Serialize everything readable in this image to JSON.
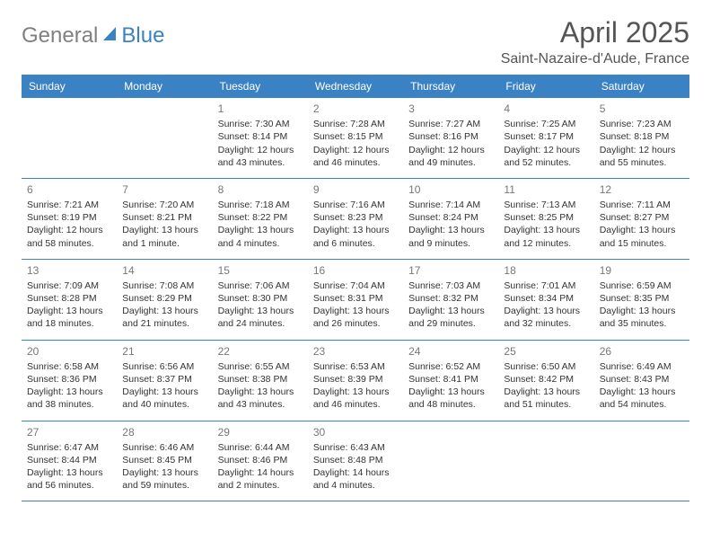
{
  "logo": {
    "text1": "General",
    "text2": "Blue"
  },
  "title": "April 2025",
  "location": "Saint-Nazaire-d'Aude, France",
  "colors": {
    "header_bg": "#3b82c4",
    "header_text": "#ffffff",
    "logo_gray": "#808080",
    "logo_blue": "#3b82c4",
    "title_color": "#555555",
    "text_color": "#333333",
    "daynum_color": "#777777",
    "border_color": "#3b82c4",
    "background": "#ffffff"
  },
  "weekdays": [
    "Sunday",
    "Monday",
    "Tuesday",
    "Wednesday",
    "Thursday",
    "Friday",
    "Saturday"
  ],
  "weeks": [
    [
      null,
      null,
      {
        "n": "1",
        "sr": "Sunrise: 7:30 AM",
        "ss": "Sunset: 8:14 PM",
        "d1": "Daylight: 12 hours",
        "d2": "and 43 minutes."
      },
      {
        "n": "2",
        "sr": "Sunrise: 7:28 AM",
        "ss": "Sunset: 8:15 PM",
        "d1": "Daylight: 12 hours",
        "d2": "and 46 minutes."
      },
      {
        "n": "3",
        "sr": "Sunrise: 7:27 AM",
        "ss": "Sunset: 8:16 PM",
        "d1": "Daylight: 12 hours",
        "d2": "and 49 minutes."
      },
      {
        "n": "4",
        "sr": "Sunrise: 7:25 AM",
        "ss": "Sunset: 8:17 PM",
        "d1": "Daylight: 12 hours",
        "d2": "and 52 minutes."
      },
      {
        "n": "5",
        "sr": "Sunrise: 7:23 AM",
        "ss": "Sunset: 8:18 PM",
        "d1": "Daylight: 12 hours",
        "d2": "and 55 minutes."
      }
    ],
    [
      {
        "n": "6",
        "sr": "Sunrise: 7:21 AM",
        "ss": "Sunset: 8:19 PM",
        "d1": "Daylight: 12 hours",
        "d2": "and 58 minutes."
      },
      {
        "n": "7",
        "sr": "Sunrise: 7:20 AM",
        "ss": "Sunset: 8:21 PM",
        "d1": "Daylight: 13 hours",
        "d2": "and 1 minute."
      },
      {
        "n": "8",
        "sr": "Sunrise: 7:18 AM",
        "ss": "Sunset: 8:22 PM",
        "d1": "Daylight: 13 hours",
        "d2": "and 4 minutes."
      },
      {
        "n": "9",
        "sr": "Sunrise: 7:16 AM",
        "ss": "Sunset: 8:23 PM",
        "d1": "Daylight: 13 hours",
        "d2": "and 6 minutes."
      },
      {
        "n": "10",
        "sr": "Sunrise: 7:14 AM",
        "ss": "Sunset: 8:24 PM",
        "d1": "Daylight: 13 hours",
        "d2": "and 9 minutes."
      },
      {
        "n": "11",
        "sr": "Sunrise: 7:13 AM",
        "ss": "Sunset: 8:25 PM",
        "d1": "Daylight: 13 hours",
        "d2": "and 12 minutes."
      },
      {
        "n": "12",
        "sr": "Sunrise: 7:11 AM",
        "ss": "Sunset: 8:27 PM",
        "d1": "Daylight: 13 hours",
        "d2": "and 15 minutes."
      }
    ],
    [
      {
        "n": "13",
        "sr": "Sunrise: 7:09 AM",
        "ss": "Sunset: 8:28 PM",
        "d1": "Daylight: 13 hours",
        "d2": "and 18 minutes."
      },
      {
        "n": "14",
        "sr": "Sunrise: 7:08 AM",
        "ss": "Sunset: 8:29 PM",
        "d1": "Daylight: 13 hours",
        "d2": "and 21 minutes."
      },
      {
        "n": "15",
        "sr": "Sunrise: 7:06 AM",
        "ss": "Sunset: 8:30 PM",
        "d1": "Daylight: 13 hours",
        "d2": "and 24 minutes."
      },
      {
        "n": "16",
        "sr": "Sunrise: 7:04 AM",
        "ss": "Sunset: 8:31 PM",
        "d1": "Daylight: 13 hours",
        "d2": "and 26 minutes."
      },
      {
        "n": "17",
        "sr": "Sunrise: 7:03 AM",
        "ss": "Sunset: 8:32 PM",
        "d1": "Daylight: 13 hours",
        "d2": "and 29 minutes."
      },
      {
        "n": "18",
        "sr": "Sunrise: 7:01 AM",
        "ss": "Sunset: 8:34 PM",
        "d1": "Daylight: 13 hours",
        "d2": "and 32 minutes."
      },
      {
        "n": "19",
        "sr": "Sunrise: 6:59 AM",
        "ss": "Sunset: 8:35 PM",
        "d1": "Daylight: 13 hours",
        "d2": "and 35 minutes."
      }
    ],
    [
      {
        "n": "20",
        "sr": "Sunrise: 6:58 AM",
        "ss": "Sunset: 8:36 PM",
        "d1": "Daylight: 13 hours",
        "d2": "and 38 minutes."
      },
      {
        "n": "21",
        "sr": "Sunrise: 6:56 AM",
        "ss": "Sunset: 8:37 PM",
        "d1": "Daylight: 13 hours",
        "d2": "and 40 minutes."
      },
      {
        "n": "22",
        "sr": "Sunrise: 6:55 AM",
        "ss": "Sunset: 8:38 PM",
        "d1": "Daylight: 13 hours",
        "d2": "and 43 minutes."
      },
      {
        "n": "23",
        "sr": "Sunrise: 6:53 AM",
        "ss": "Sunset: 8:39 PM",
        "d1": "Daylight: 13 hours",
        "d2": "and 46 minutes."
      },
      {
        "n": "24",
        "sr": "Sunrise: 6:52 AM",
        "ss": "Sunset: 8:41 PM",
        "d1": "Daylight: 13 hours",
        "d2": "and 48 minutes."
      },
      {
        "n": "25",
        "sr": "Sunrise: 6:50 AM",
        "ss": "Sunset: 8:42 PM",
        "d1": "Daylight: 13 hours",
        "d2": "and 51 minutes."
      },
      {
        "n": "26",
        "sr": "Sunrise: 6:49 AM",
        "ss": "Sunset: 8:43 PM",
        "d1": "Daylight: 13 hours",
        "d2": "and 54 minutes."
      }
    ],
    [
      {
        "n": "27",
        "sr": "Sunrise: 6:47 AM",
        "ss": "Sunset: 8:44 PM",
        "d1": "Daylight: 13 hours",
        "d2": "and 56 minutes."
      },
      {
        "n": "28",
        "sr": "Sunrise: 6:46 AM",
        "ss": "Sunset: 8:45 PM",
        "d1": "Daylight: 13 hours",
        "d2": "and 59 minutes."
      },
      {
        "n": "29",
        "sr": "Sunrise: 6:44 AM",
        "ss": "Sunset: 8:46 PM",
        "d1": "Daylight: 14 hours",
        "d2": "and 2 minutes."
      },
      {
        "n": "30",
        "sr": "Sunrise: 6:43 AM",
        "ss": "Sunset: 8:48 PM",
        "d1": "Daylight: 14 hours",
        "d2": "and 4 minutes."
      },
      null,
      null,
      null
    ]
  ]
}
